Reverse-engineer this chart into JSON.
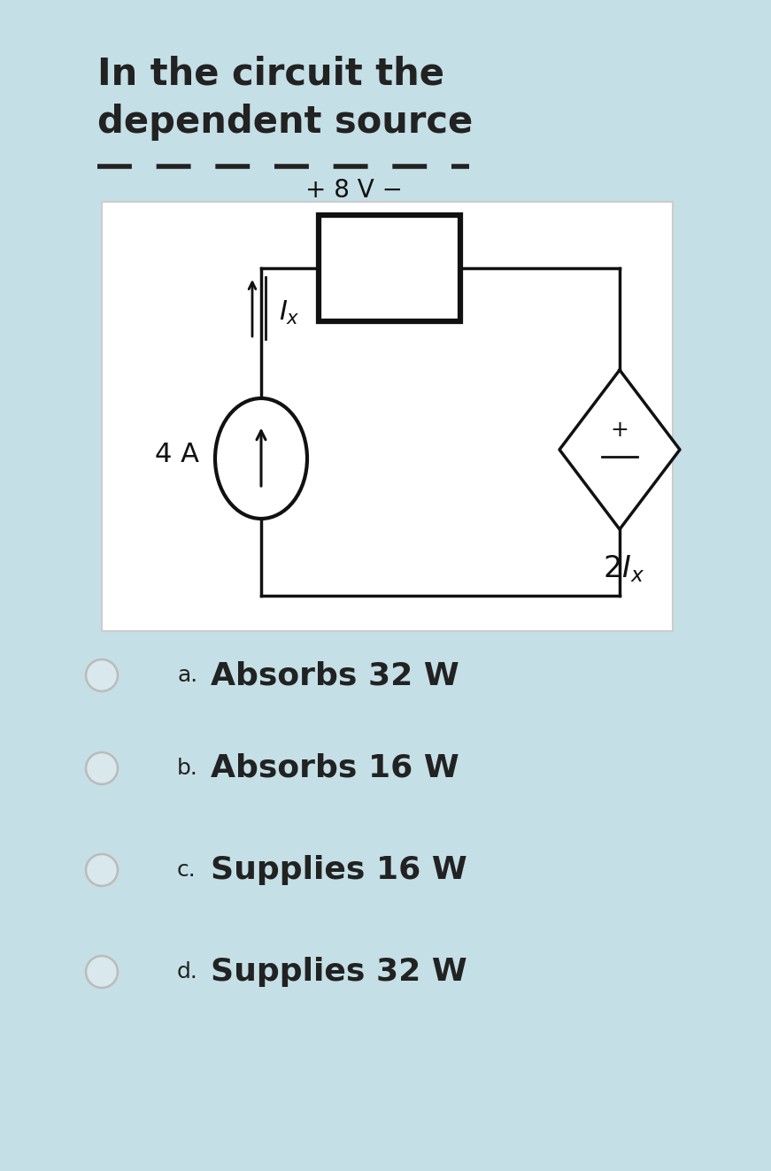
{
  "bg_color": "#c5dfe6",
  "title_line1": "In the circuit the",
  "title_line2": "dependent source",
  "title_fontsize": 30,
  "title_fontweight": "bold",
  "title_color": "#222222",
  "dash_color": "#222222",
  "circuit_bg": "#ffffff",
  "circuit_border": "#cccccc",
  "line_color": "#111111",
  "lw": 2.5,
  "options": [
    {
      "label": "a.",
      "text": "Absorbs 32 W"
    },
    {
      "label": "b.",
      "text": "Absorbs 16 W"
    },
    {
      "label": "c.",
      "text": "Supplies 16 W"
    },
    {
      "label": "d.",
      "text": "Supplies 32 W"
    }
  ],
  "option_label_fontsize": 18,
  "option_text_fontsize": 26,
  "option_color": "#222222",
  "radio_color": "#bbbbbb",
  "radio_fill": "#d8e8ec"
}
